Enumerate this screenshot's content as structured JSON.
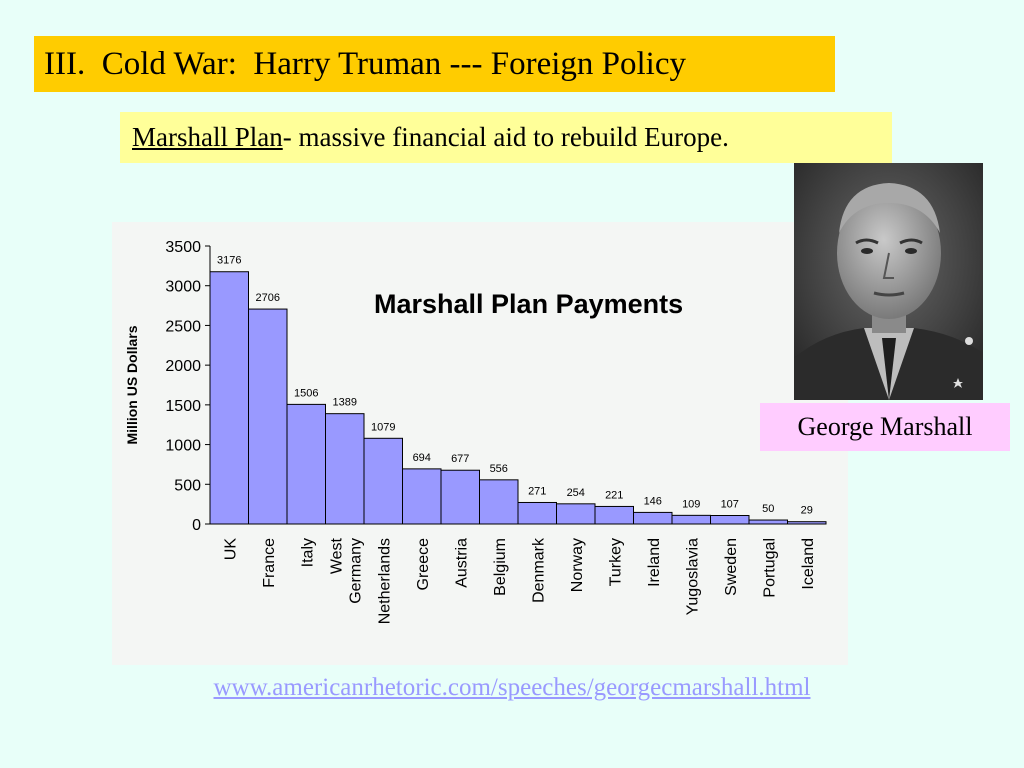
{
  "slide": {
    "title": "III.  Cold War:  Harry Truman --- Foreign Policy",
    "subtitle_term": "Marshall Plan",
    "subtitle_rest": "- massive financial aid to rebuild Europe.",
    "photo_caption": "George Marshall",
    "source_url": "www.americanrhetoric.com/speeches/georgecmarshall.html"
  },
  "chart_data": {
    "type": "bar",
    "title": "Marshall Plan Payments",
    "xlabel": "",
    "ylabel": "Million US Dollars",
    "ylim": [
      0,
      3500
    ],
    "yticks": [
      0,
      500,
      1000,
      1500,
      2000,
      2500,
      3000,
      3500
    ],
    "grid": false,
    "legend": "none",
    "bar_color": "#9999ff",
    "categories": [
      "UK",
      "France",
      "Italy",
      "West Germany",
      "Netherlands",
      "Greece",
      "Austria",
      "Belgium",
      "Denmark",
      "Norway",
      "Turkey",
      "Ireland",
      "Yugoslavia",
      "Sweden",
      "Portugal",
      "Iceland"
    ],
    "values": [
      3176,
      2706,
      1506,
      1389,
      1079,
      694,
      677,
      556,
      271,
      254,
      221,
      146,
      109,
      107,
      50,
      29
    ]
  }
}
